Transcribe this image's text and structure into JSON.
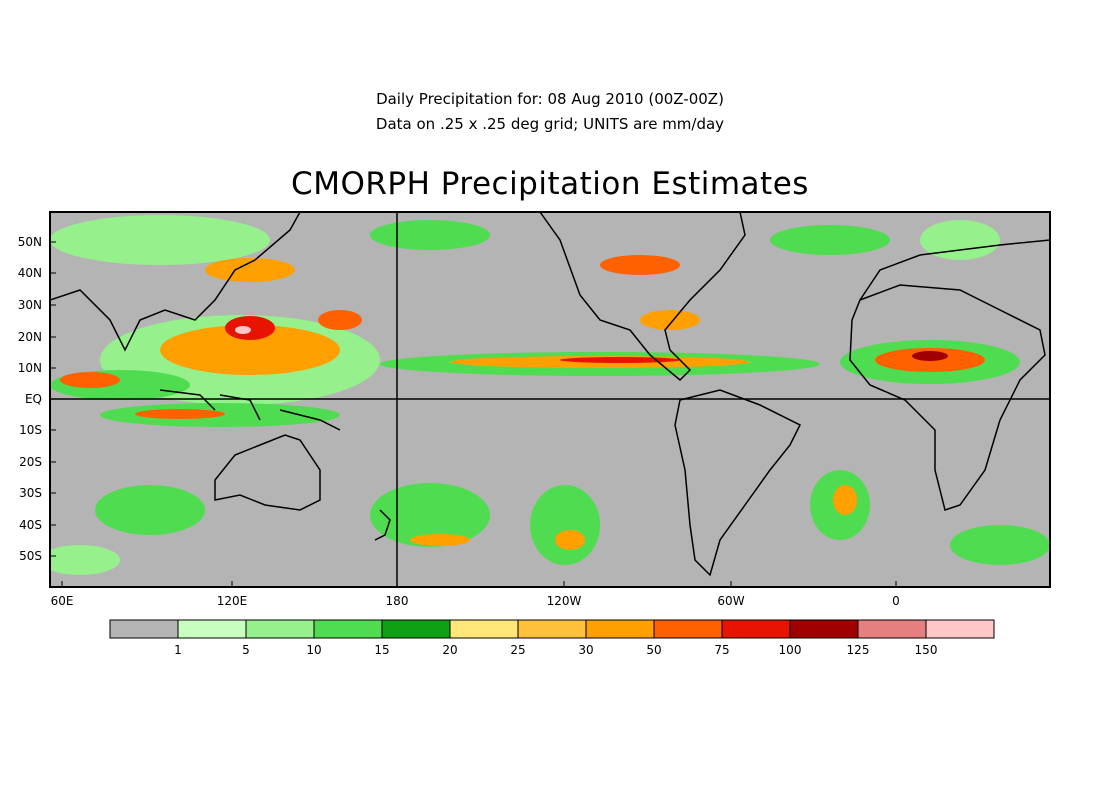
{
  "header": {
    "line1": "Daily Precipitation for: 08 Aug 2010 (00Z-00Z)",
    "line2": "Data on .25 x .25 deg grid; UNITS are mm/day",
    "title": "CMORPH Precipitation Estimates"
  },
  "map": {
    "lat_labels": [
      "50N",
      "40N",
      "30N",
      "20N",
      "10N",
      "EQ",
      "10S",
      "20S",
      "30S",
      "40S",
      "50S"
    ],
    "lon_labels": [
      "60E",
      "120E",
      "180",
      "120W",
      "60W",
      "0"
    ],
    "background_color": "#b4b4b4",
    "coastline_color": "#000000"
  },
  "legend": {
    "colors": [
      "#b4b4b4",
      "#c8ffc0",
      "#96f08c",
      "#50dc50",
      "#10a014",
      "#ffe678",
      "#ffc03c",
      "#ffa000",
      "#ff6000",
      "#e61400",
      "#a00000",
      "#e68080",
      "#ffc8c8"
    ],
    "labels": [
      "1",
      "5",
      "10",
      "15",
      "20",
      "25",
      "30",
      "50",
      "75",
      "100",
      "125",
      "150"
    ]
  }
}
